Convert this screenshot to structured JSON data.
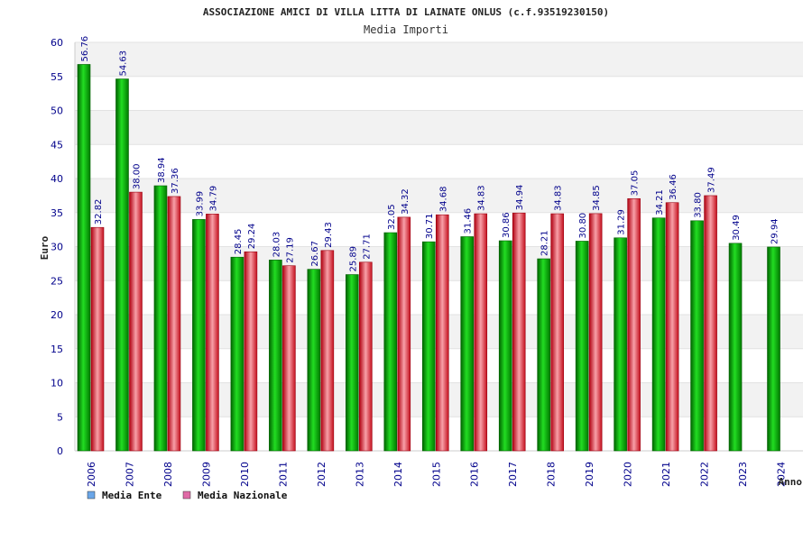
{
  "chart_data": {
    "type": "bar",
    "title": "ASSOCIAZIONE AMICI DI VILLA LITTA DI LAINATE ONLUS (c.f.93519230150)",
    "subtitle": "Media Importi",
    "xlabel": "Anno",
    "ylabel": "Euro",
    "ylim": [
      0,
      60
    ],
    "yticks": [
      0,
      5,
      10,
      15,
      20,
      25,
      30,
      35,
      40,
      45,
      50,
      55,
      60
    ],
    "grid": "horizontal bands",
    "legend_position": "bottom-left",
    "categories": [
      "2006",
      "2007",
      "2008",
      "2009",
      "2010",
      "2011",
      "2012",
      "2013",
      "2014",
      "2015",
      "2016",
      "2017",
      "2018",
      "2019",
      "2020",
      "2021",
      "2022",
      "2023",
      "2024"
    ],
    "series": [
      {
        "name": "Media Ente",
        "bar_color": "#00b000",
        "legend_color": "#6aa6e8",
        "values": [
          56.76,
          54.63,
          38.94,
          33.99,
          28.45,
          28.03,
          26.67,
          25.89,
          32.05,
          30.71,
          31.46,
          30.86,
          28.21,
          30.8,
          31.29,
          34.21,
          33.8,
          30.49,
          29.94
        ],
        "labels": [
          "56.76",
          "54.63",
          "38.94",
          "33.99",
          "28.45",
          "28.03",
          "26.67",
          "25.89",
          "32.05",
          "30.71",
          "31.46",
          "30.86",
          "28.21",
          "30.80",
          "31.29",
          "34.21",
          "33.80",
          "30.49",
          "29.94"
        ]
      },
      {
        "name": "Media Nazionale",
        "bar_color": "#e8202a",
        "legend_color": "#e06aa6",
        "values": [
          32.82,
          38.0,
          37.36,
          34.79,
          29.24,
          27.19,
          29.43,
          27.71,
          34.32,
          34.68,
          34.83,
          34.94,
          34.83,
          34.85,
          37.05,
          36.46,
          37.49,
          null,
          null
        ],
        "labels": [
          "32.82",
          "38.00",
          "37.36",
          "34.79",
          "29.24",
          "27.19",
          "29.43",
          "27.71",
          "34.32",
          "34.68",
          "34.83",
          "34.94",
          "34.83",
          "34.85",
          "37.05",
          "36.46",
          "37.49",
          "",
          ""
        ]
      }
    ]
  }
}
